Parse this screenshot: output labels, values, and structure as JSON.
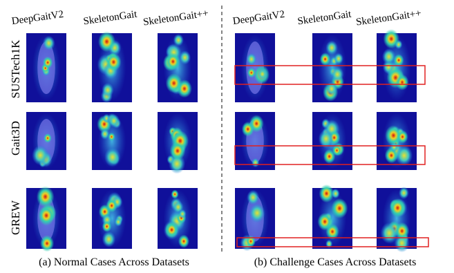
{
  "panels": [
    {
      "caption": "(a) Normal Cases Across Datasets",
      "columns": [
        "DeepGaitV2",
        "SkeletonGait",
        "SkeletonGait++"
      ]
    },
    {
      "caption": "(b) Challenge Cases Across Datasets",
      "columns": [
        "DeepGaitV2",
        "SkeletonGait",
        "SkeletonGait++"
      ]
    }
  ],
  "rows": [
    "SUSTech1K",
    "Gait3D",
    "GREW"
  ]
}
